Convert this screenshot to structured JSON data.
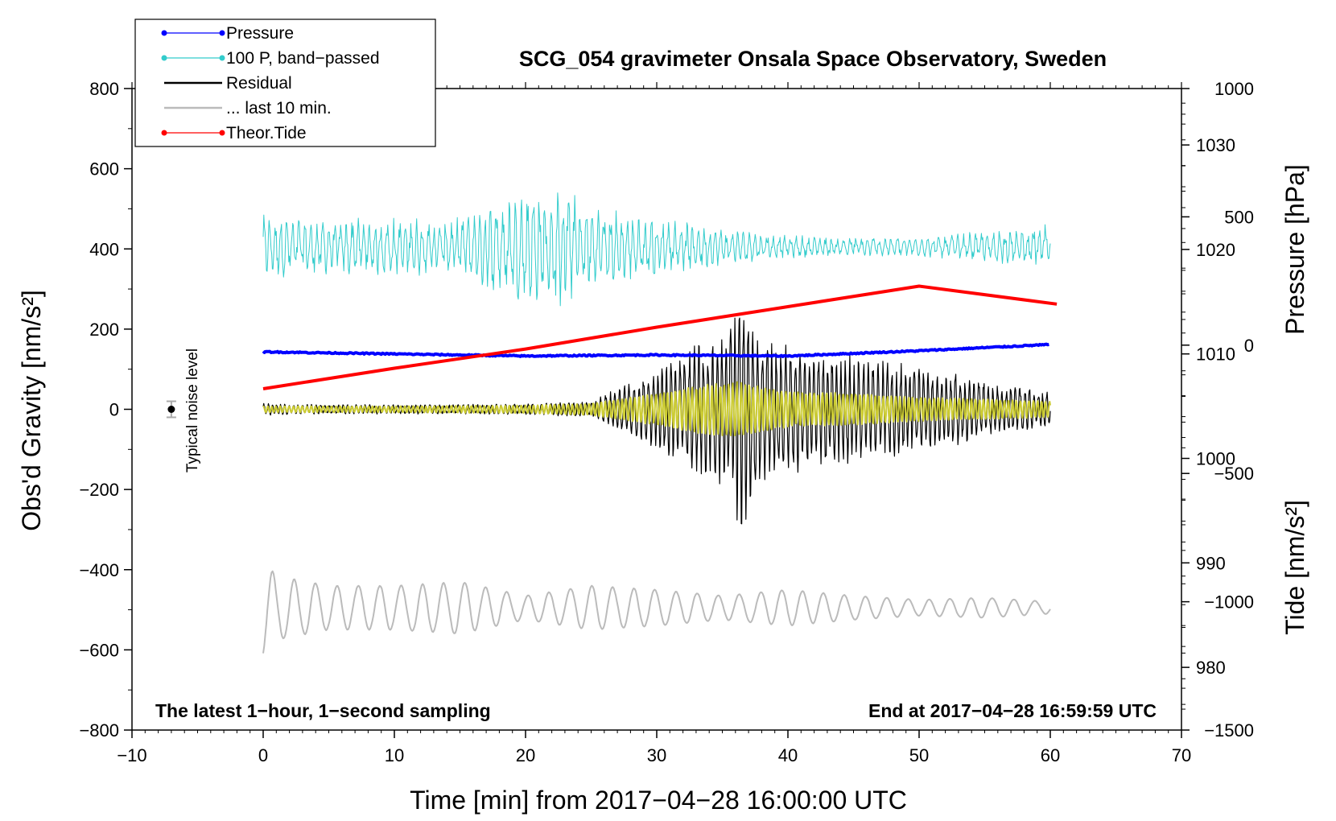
{
  "chart_data": {
    "type": "line",
    "title": "SCG_054 gravimeter Onsala Space Observatory, Sweden",
    "xlabel": "Time [min] from 2017−04−28 16:00:00 UTC",
    "ylabel_left": "Obs'd Gravity [nm/s²]",
    "ylabel_right_top": "Pressure [hPa]",
    "ylabel_right_bottom": "Tide [nm/s²]",
    "xlim": [
      -10,
      70
    ],
    "ylim": [
      -800,
      800
    ],
    "pressure_ylim": [
      974.0,
      1035.4
    ],
    "tide_ylim": [
      -1500,
      1000
    ],
    "x_ticks": [
      -10,
      0,
      10,
      20,
      30,
      40,
      50,
      60,
      70
    ],
    "x_tick_labels": [
      "−10",
      "0",
      "10",
      "20",
      "30",
      "40",
      "50",
      "60",
      "70"
    ],
    "y_ticks": [
      -800,
      -600,
      -400,
      -200,
      0,
      200,
      400,
      600,
      800
    ],
    "y_tick_labels": [
      "−800",
      "−600",
      "−400",
      "−200",
      "0",
      "200",
      "400",
      "600",
      "800"
    ],
    "pressure_ticks": [
      980,
      990,
      1000,
      1010,
      1020,
      1030
    ],
    "pressure_tick_labels": [
      "980",
      "990",
      "1000",
      "1010",
      "1020",
      "1030"
    ],
    "tide_ticks": [
      -1500,
      -1000,
      -500,
      0,
      500,
      1000
    ],
    "tide_tick_labels": [
      "−1500",
      "−1000",
      "−500",
      "0",
      "500",
      "1000"
    ],
    "legend": [
      {
        "label": "Pressure",
        "color": "#0000ff",
        "marker": "dot"
      },
      {
        "label": "100 P, band−passed",
        "color": "#33cccc",
        "marker": "dot"
      },
      {
        "label": "Residual",
        "color": "#000000",
        "marker": "none"
      },
      {
        "label": "... last 10 min.",
        "color": "#bbbbbb",
        "marker": "none"
      },
      {
        "label": "Theor.Tide",
        "color": "#ff0000",
        "marker": "dot"
      }
    ],
    "annotations": {
      "bottom_left": "The latest 1−hour, 1−second sampling",
      "bottom_right": "End at 2017−04−28 16:59:59 UTC",
      "noise_label": "Typical noise level"
    },
    "noise_marker": {
      "x": -7,
      "y": 0,
      "error": 20
    },
    "series": [
      {
        "name": "Pressure",
        "axis": "pressure",
        "color": "#0000ff",
        "x": [
          0,
          10,
          20,
          30,
          40,
          50,
          60
        ],
        "y": [
          1010.2,
          1010.0,
          1009.8,
          1009.9,
          1009.8,
          1010.3,
          1010.9
        ]
      },
      {
        "name": "100 P, band−passed",
        "axis": "gravity",
        "color": "#33cccc",
        "envelope_x": [
          0,
          5,
          10,
          15,
          20,
          22,
          25,
          28,
          30,
          35,
          40,
          45,
          50,
          55,
          60
        ],
        "envelope_amp": [
          80,
          70,
          75,
          75,
          150,
          170,
          110,
          85,
          80,
          45,
          30,
          25,
          25,
          40,
          60
        ],
        "baseline": 405
      },
      {
        "name": "Residual",
        "axis": "gravity",
        "color": "#000000",
        "envelope_x": [
          0,
          5,
          10,
          15,
          20,
          25,
          28,
          30,
          32,
          35,
          36.5,
          38,
          40,
          43,
          46,
          50,
          55,
          60
        ],
        "envelope_amp": [
          15,
          12,
          12,
          12,
          14,
          20,
          70,
          100,
          150,
          200,
          310,
          180,
          170,
          150,
          130,
          110,
          75,
          45
        ],
        "baseline": 0
      },
      {
        "name": "Residual (band−passed)",
        "axis": "gravity",
        "color": "#cccc33",
        "envelope_x": [
          0,
          10,
          20,
          25,
          28,
          30,
          33,
          36,
          40,
          45,
          50,
          55,
          60
        ],
        "envelope_amp": [
          8,
          8,
          10,
          15,
          30,
          40,
          60,
          70,
          45,
          40,
          30,
          25,
          20
        ],
        "baseline": 0
      },
      {
        "name": "... last 10 min.",
        "axis": "gravity",
        "color": "#bbbbbb",
        "envelope_x": [
          0,
          1,
          5,
          10,
          15,
          20,
          25,
          30,
          35,
          40,
          45,
          50,
          55,
          60
        ],
        "envelope_amp": [
          120,
          80,
          55,
          55,
          65,
          30,
          55,
          45,
          30,
          45,
          30,
          20,
          25,
          15
        ],
        "baseline": -495
      },
      {
        "name": "Theor.Tide",
        "axis": "tide",
        "color": "#ff0000",
        "x": [
          0,
          10,
          20,
          30,
          40,
          50,
          60.5
        ],
        "y": [
          -170,
          -90,
          -15,
          70,
          150,
          230,
          160
        ]
      }
    ]
  }
}
